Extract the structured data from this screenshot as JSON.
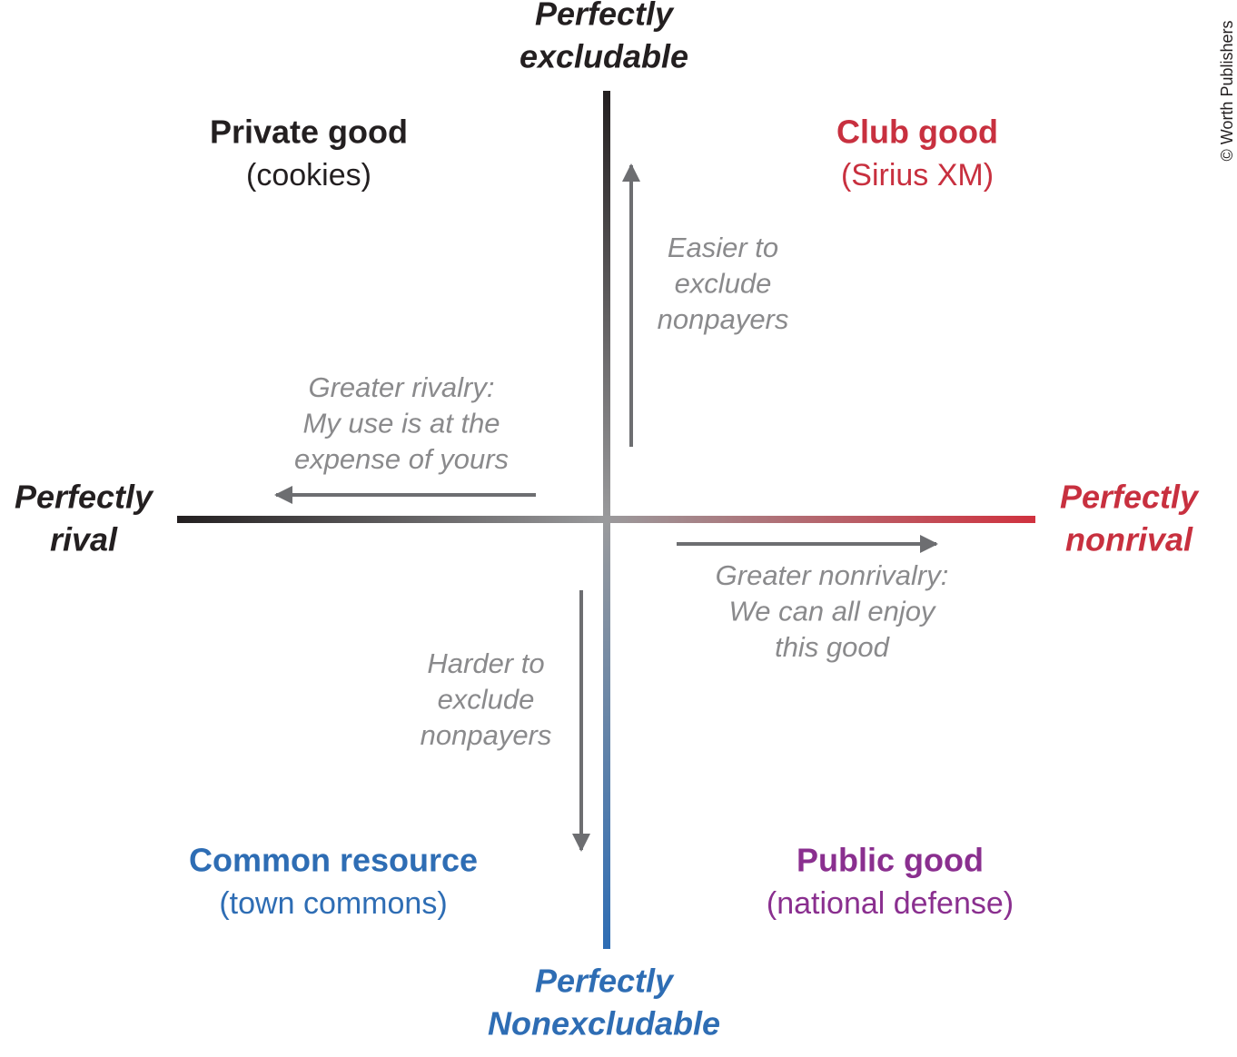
{
  "axes": {
    "top": [
      "Perfectly",
      "excludable"
    ],
    "bottom": [
      "Perfectly",
      "Nonexcludable"
    ],
    "left": [
      "Perfectly",
      "rival"
    ],
    "right": [
      "Perfectly",
      "nonrival"
    ]
  },
  "quadrants": {
    "top_left": {
      "name": "Private good",
      "example": "(cookies)"
    },
    "top_right": {
      "name": "Club good",
      "example": "(Sirius XM)"
    },
    "bottom_left": {
      "name": "Common resource",
      "example": "(town commons)"
    },
    "bottom_right": {
      "name": "Public good",
      "example": "(national defense)"
    }
  },
  "arrows": {
    "up": [
      "Easier to",
      "exclude",
      "nonpayers"
    ],
    "down": [
      "Harder to",
      "exclude",
      "nonpayers"
    ],
    "left": [
      "Greater rivalry:",
      "My use is at the",
      "expense of yours"
    ],
    "right": [
      "Greater nonrivalry:",
      "We can all enjoy",
      "this good"
    ]
  },
  "credit": "© Worth Publishers"
}
